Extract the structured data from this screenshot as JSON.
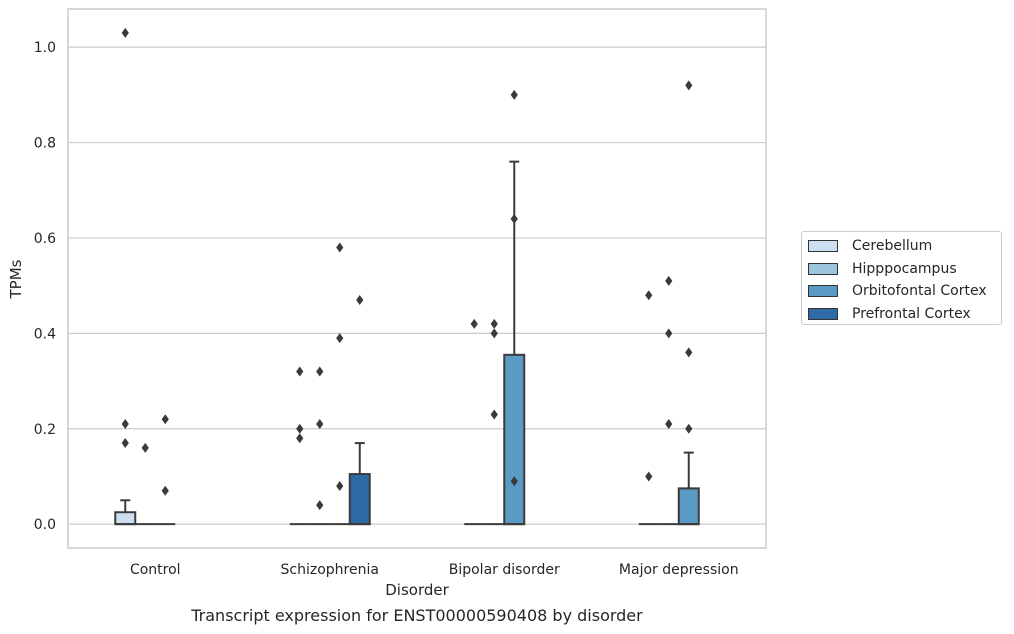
{
  "caption": "Transcript expression for ENST00000590408 by disorder",
  "chart_data": {
    "type": "box",
    "xlabel": "Disorder",
    "ylabel": "TPMs",
    "ylim": [
      -0.05,
      1.08
    ],
    "yticks": [
      0.0,
      0.2,
      0.4,
      0.6,
      0.8,
      1.0
    ],
    "ytick_labels": [
      "0.0",
      "0.2",
      "0.4",
      "0.6",
      "0.8",
      "1.0"
    ],
    "grid": true,
    "legend_position": "right",
    "categories": [
      "Control",
      "Schizophrenia",
      "Bipolar disorder",
      "Major depression"
    ],
    "series": [
      {
        "name": "Cerebellum",
        "color": "#cddfee",
        "boxes": [
          {
            "q1": 0.0,
            "median": 0.0,
            "q3": 0.025,
            "whisker_low": 0.0,
            "whisker_high": 0.05,
            "outliers": [
              0.21,
              0.17,
              1.03
            ]
          },
          {
            "q1": 0.0,
            "median": 0.0,
            "q3": 0.0,
            "whisker_low": 0.0,
            "whisker_high": 0.0,
            "outliers": [
              0.32,
              0.2,
              0.18
            ]
          },
          {
            "q1": 0.0,
            "median": 0.0,
            "q3": 0.0,
            "whisker_low": 0.0,
            "whisker_high": 0.0,
            "outliers": [
              0.42
            ]
          },
          {
            "q1": 0.0,
            "median": 0.0,
            "q3": 0.0,
            "whisker_low": 0.0,
            "whisker_high": 0.0,
            "outliers": [
              0.48,
              0.1
            ]
          }
        ]
      },
      {
        "name": "Hipppocampus",
        "color": "#9dc4dd",
        "boxes": [
          {
            "q1": 0.0,
            "median": 0.0,
            "q3": 0.0,
            "whisker_low": 0.0,
            "whisker_high": 0.0,
            "outliers": [
              0.16
            ]
          },
          {
            "q1": 0.0,
            "median": 0.0,
            "q3": 0.0,
            "whisker_low": 0.0,
            "whisker_high": 0.0,
            "outliers": [
              0.32,
              0.21,
              0.04
            ]
          },
          {
            "q1": 0.0,
            "median": 0.0,
            "q3": 0.0,
            "whisker_low": 0.0,
            "whisker_high": 0.0,
            "outliers": [
              0.42,
              0.4,
              0.23
            ]
          },
          {
            "q1": 0.0,
            "median": 0.0,
            "q3": 0.0,
            "whisker_low": 0.0,
            "whisker_high": 0.0,
            "outliers": [
              0.51,
              0.4,
              0.21
            ]
          }
        ]
      },
      {
        "name": "Orbitofontal Cortex",
        "color": "#5a9bc5",
        "boxes": [
          {
            "q1": 0.0,
            "median": 0.0,
            "q3": 0.0,
            "whisker_low": 0.0,
            "whisker_high": 0.0,
            "outliers": [
              0.22,
              0.07
            ]
          },
          {
            "q1": 0.0,
            "median": 0.0,
            "q3": 0.0,
            "whisker_low": 0.0,
            "whisker_high": 0.0,
            "outliers": [
              0.58,
              0.39,
              0.08
            ]
          },
          {
            "q1": 0.0,
            "median": 0.0,
            "q3": 0.355,
            "whisker_low": 0.0,
            "whisker_high": 0.76,
            "outliers": [
              0.9,
              0.64,
              0.09
            ]
          },
          {
            "q1": 0.0,
            "median": 0.0,
            "q3": 0.075,
            "whisker_low": 0.0,
            "whisker_high": 0.15,
            "outliers": [
              0.92,
              0.36,
              0.2
            ]
          }
        ]
      },
      {
        "name": "Prefrontal Cortex",
        "color": "#2e6aa6",
        "boxes": [
          null,
          {
            "q1": 0.0,
            "median": 0.0,
            "q3": 0.105,
            "whisker_low": 0.0,
            "whisker_high": 0.17,
            "outliers": [
              0.47
            ]
          },
          null,
          null
        ]
      }
    ]
  }
}
